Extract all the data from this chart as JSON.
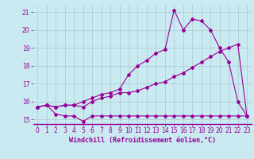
{
  "xlabel": "Windchill (Refroidissement éolien,°C)",
  "bg_color": "#c8eaf0",
  "grid_color": "#b0c8d0",
  "line_color": "#990099",
  "series1_x": [
    0,
    1,
    2,
    3,
    4,
    5,
    6,
    7,
    8,
    9,
    10,
    11,
    12,
    13,
    14,
    15,
    16,
    17,
    18,
    19,
    20,
    21,
    22,
    23
  ],
  "series1_y": [
    15.7,
    15.8,
    15.3,
    15.2,
    15.2,
    14.9,
    15.2,
    15.2,
    15.2,
    15.2,
    15.2,
    15.2,
    15.2,
    15.2,
    15.2,
    15.2,
    15.2,
    15.2,
    15.2,
    15.2,
    15.2,
    15.2,
    15.2,
    15.2
  ],
  "series2_x": [
    0,
    1,
    2,
    3,
    4,
    5,
    6,
    7,
    8,
    9,
    10,
    11,
    12,
    13,
    14,
    15,
    16,
    17,
    18,
    19,
    20,
    21,
    22,
    23
  ],
  "series2_y": [
    15.7,
    15.8,
    15.7,
    15.8,
    15.8,
    15.7,
    16.0,
    16.2,
    16.3,
    16.5,
    16.5,
    16.6,
    16.8,
    17.0,
    17.1,
    17.4,
    17.6,
    17.9,
    18.2,
    18.5,
    18.8,
    19.0,
    19.2,
    15.2
  ],
  "series3_x": [
    0,
    1,
    2,
    3,
    4,
    5,
    6,
    7,
    8,
    9,
    10,
    11,
    12,
    13,
    14,
    15,
    16,
    17,
    18,
    19,
    20,
    21,
    22,
    23
  ],
  "series3_y": [
    15.7,
    15.8,
    15.7,
    15.8,
    15.8,
    16.0,
    16.2,
    16.4,
    16.5,
    16.7,
    17.5,
    18.0,
    18.3,
    18.7,
    18.9,
    21.1,
    20.0,
    20.6,
    20.5,
    20.0,
    19.0,
    18.2,
    16.0,
    15.2
  ],
  "ylim": [
    14.75,
    21.4
  ],
  "xlim": [
    -0.5,
    23.5
  ],
  "yticks": [
    15,
    16,
    17,
    18,
    19,
    20,
    21
  ],
  "xticks": [
    0,
    1,
    2,
    3,
    4,
    5,
    6,
    7,
    8,
    9,
    10,
    11,
    12,
    13,
    14,
    15,
    16,
    17,
    18,
    19,
    20,
    21,
    22,
    23
  ],
  "tick_fontsize": 5.5,
  "xlabel_fontsize": 6.0,
  "marker_size": 2.0,
  "linewidth": 0.8
}
